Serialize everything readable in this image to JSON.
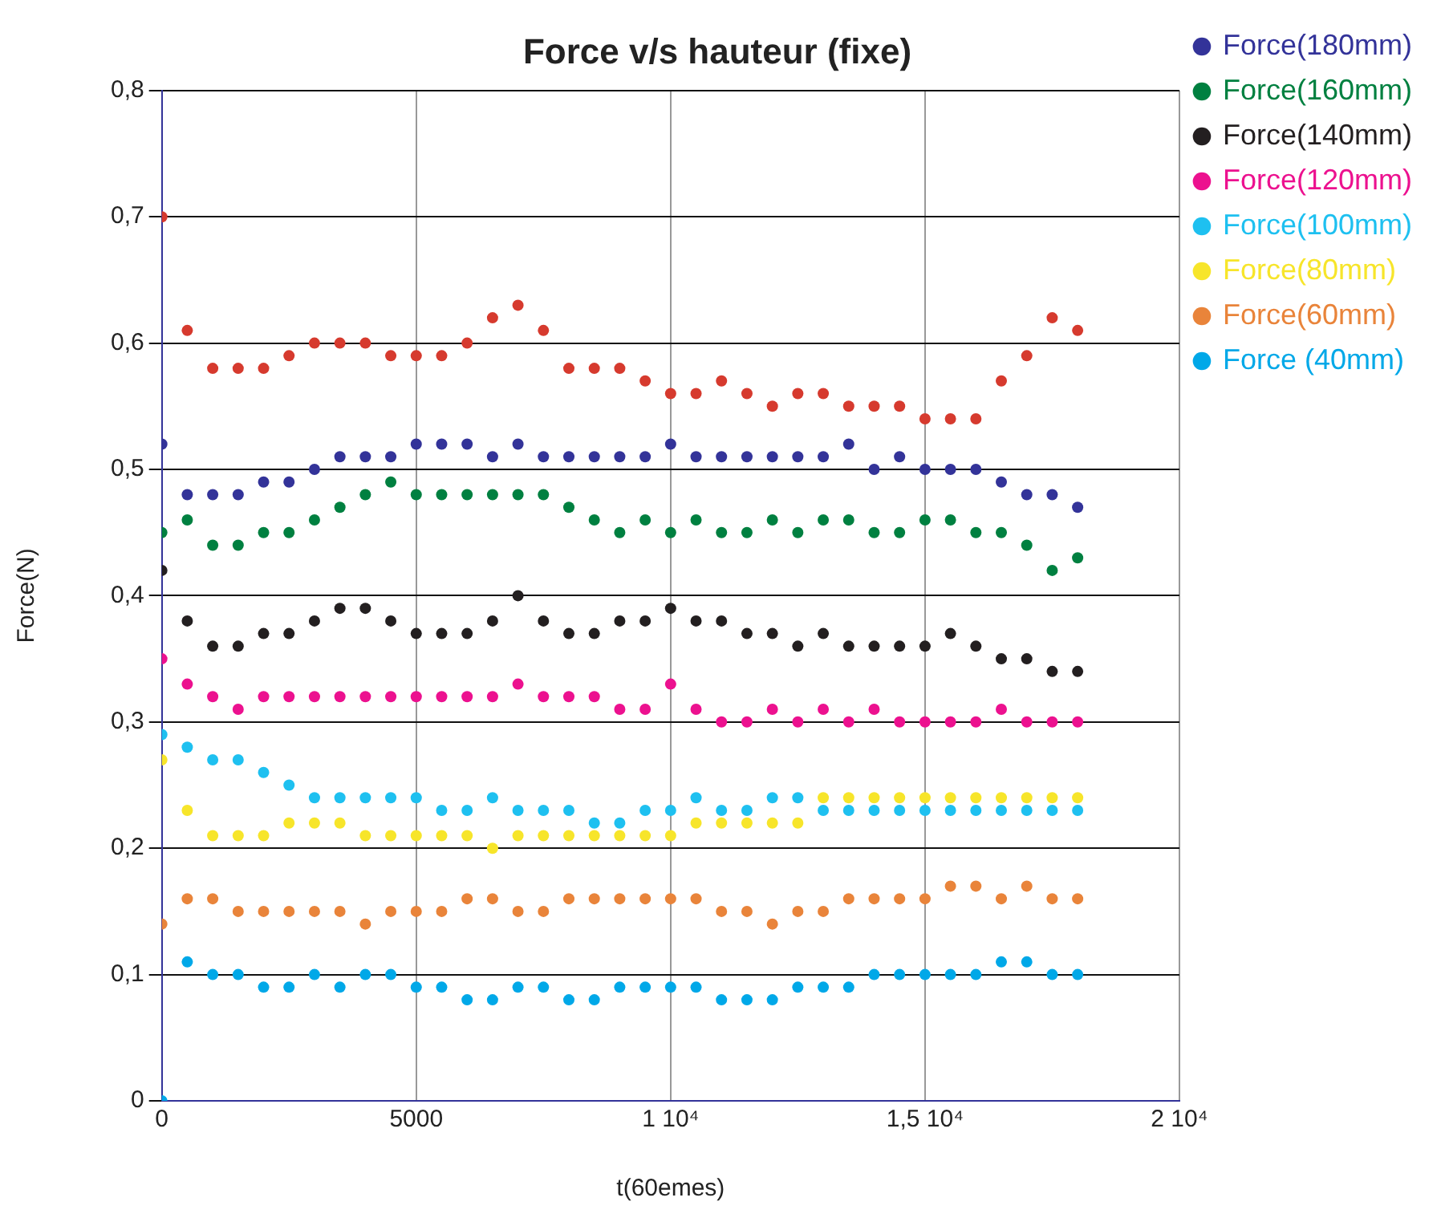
{
  "chart_data": {
    "type": "scatter",
    "title": "Force v/s hauteur (fixe)",
    "xlabel": "t(60emes)",
    "ylabel": "Force(N)",
    "x": [
      0,
      500,
      1000,
      1500,
      2000,
      2500,
      3000,
      3500,
      4000,
      4500,
      5000,
      5500,
      6000,
      6500,
      7000,
      7500,
      8000,
      8500,
      9000,
      9500,
      10000,
      10500,
      11000,
      11500,
      12000,
      12500,
      13000,
      13500,
      14000,
      14500,
      15000,
      15500,
      16000,
      16500,
      17000,
      17500,
      18000
    ],
    "series": [
      {
        "color": "#d63a2e",
        "values": [
          0.7,
          0.61,
          0.58,
          0.58,
          0.58,
          0.59,
          0.6,
          0.6,
          0.6,
          0.59,
          0.59,
          0.59,
          0.6,
          0.62,
          0.63,
          0.61,
          0.58,
          0.58,
          0.58,
          0.57,
          0.56,
          0.56,
          0.57,
          0.56,
          0.55,
          0.56,
          0.56,
          0.55,
          0.55,
          0.55,
          0.54,
          0.54,
          0.54,
          0.57,
          0.59,
          0.62,
          0.61
        ]
      },
      {
        "name": "Force(180mm)",
        "color": "#333399",
        "values": [
          0.52,
          0.48,
          0.48,
          0.48,
          0.49,
          0.49,
          0.5,
          0.51,
          0.51,
          0.51,
          0.52,
          0.52,
          0.52,
          0.51,
          0.52,
          0.51,
          0.51,
          0.51,
          0.51,
          0.51,
          0.52,
          0.51,
          0.51,
          0.51,
          0.51,
          0.51,
          0.51,
          0.52,
          0.5,
          0.51,
          0.5,
          0.5,
          0.5,
          0.49,
          0.48,
          0.48,
          0.47
        ]
      },
      {
        "name": "Force(160mm)",
        "color": "#008040",
        "values": [
          0.45,
          0.46,
          0.44,
          0.44,
          0.45,
          0.45,
          0.46,
          0.47,
          0.48,
          0.49,
          0.48,
          0.48,
          0.48,
          0.48,
          0.48,
          0.48,
          0.47,
          0.46,
          0.45,
          0.46,
          0.45,
          0.46,
          0.45,
          0.45,
          0.46,
          0.45,
          0.46,
          0.46,
          0.45,
          0.45,
          0.46,
          0.46,
          0.45,
          0.45,
          0.44,
          0.42,
          0.43
        ]
      },
      {
        "name": "Force(140mm)",
        "color": "#231f20",
        "values": [
          0.42,
          0.38,
          0.36,
          0.36,
          0.37,
          0.37,
          0.38,
          0.39,
          0.39,
          0.38,
          0.37,
          0.37,
          0.37,
          0.38,
          0.4,
          0.38,
          0.37,
          0.37,
          0.38,
          0.38,
          0.39,
          0.38,
          0.38,
          0.37,
          0.37,
          0.36,
          0.37,
          0.36,
          0.36,
          0.36,
          0.36,
          0.37,
          0.36,
          0.35,
          0.35,
          0.34,
          0.34
        ]
      },
      {
        "name": "Force(120mm)",
        "color": "#ec118f",
        "values": [
          0.35,
          0.33,
          0.32,
          0.31,
          0.32,
          0.32,
          0.32,
          0.32,
          0.32,
          0.32,
          0.32,
          0.32,
          0.32,
          0.32,
          0.33,
          0.32,
          0.32,
          0.32,
          0.31,
          0.31,
          0.33,
          0.31,
          0.3,
          0.3,
          0.31,
          0.3,
          0.31,
          0.3,
          0.31,
          0.3,
          0.3,
          0.3,
          0.3,
          0.31,
          0.3,
          0.3,
          0.3
        ]
      },
      {
        "name": "Force(100mm)",
        "color": "#1ec0f0",
        "values": [
          0.29,
          0.28,
          0.27,
          0.27,
          0.26,
          0.25,
          0.24,
          0.24,
          0.24,
          0.24,
          0.24,
          0.23,
          0.23,
          0.24,
          0.23,
          0.23,
          0.23,
          0.22,
          0.22,
          0.23,
          0.23,
          0.24,
          0.23,
          0.23,
          0.24,
          0.24,
          0.23,
          0.23,
          0.23,
          0.23,
          0.23,
          0.23,
          0.23,
          0.23,
          0.23,
          0.23,
          0.23
        ]
      },
      {
        "name": "Force(80mm)",
        "color": "#f7e52a",
        "values": [
          0.27,
          0.23,
          0.21,
          0.21,
          0.21,
          0.22,
          0.22,
          0.22,
          0.21,
          0.21,
          0.21,
          0.21,
          0.21,
          0.2,
          0.21,
          0.21,
          0.21,
          0.21,
          0.21,
          0.21,
          0.21,
          0.22,
          0.22,
          0.22,
          0.22,
          0.22,
          0.24,
          0.24,
          0.24,
          0.24,
          0.24,
          0.24,
          0.24,
          0.24,
          0.24,
          0.24,
          0.24
        ]
      },
      {
        "name": "Force(60mm)",
        "color": "#e9843a",
        "values": [
          0.14,
          0.16,
          0.16,
          0.15,
          0.15,
          0.15,
          0.15,
          0.15,
          0.14,
          0.15,
          0.15,
          0.15,
          0.16,
          0.16,
          0.15,
          0.15,
          0.16,
          0.16,
          0.16,
          0.16,
          0.16,
          0.16,
          0.15,
          0.15,
          0.14,
          0.15,
          0.15,
          0.16,
          0.16,
          0.16,
          0.16,
          0.17,
          0.17,
          0.16,
          0.17,
          0.16,
          0.16
        ]
      },
      {
        "name": "Force (40mm)",
        "color": "#00a8e8",
        "values": [
          0.0,
          0.11,
          0.1,
          0.1,
          0.09,
          0.09,
          0.1,
          0.09,
          0.1,
          0.1,
          0.09,
          0.09,
          0.08,
          0.08,
          0.09,
          0.09,
          0.08,
          0.08,
          0.09,
          0.09,
          0.09,
          0.09,
          0.08,
          0.08,
          0.08,
          0.09,
          0.09,
          0.09,
          0.1,
          0.1,
          0.1,
          0.1,
          0.1,
          0.11,
          0.11,
          0.1,
          0.1
        ]
      }
    ],
    "xlim": [
      0,
      20000
    ],
    "xticks": [
      0,
      5000,
      {
        "value": 10000,
        "label": "1 10⁴"
      },
      {
        "value": 15000,
        "label": "1,5 10⁴"
      },
      {
        "value": 20000,
        "label": "2 10⁴"
      }
    ],
    "ylim": [
      0,
      0.8
    ],
    "yticks": [
      0,
      {
        "value": 0.1,
        "label": "0,1"
      },
      {
        "value": 0.2,
        "label": "0,2"
      },
      {
        "value": 0.3,
        "label": "0,3"
      },
      {
        "value": 0.4,
        "label": "0,4"
      },
      {
        "value": 0.5,
        "label": "0,5"
      },
      {
        "value": 0.6,
        "label": "0,6"
      },
      {
        "value": 0.7,
        "label": "0,7"
      },
      {
        "value": 0.8,
        "label": "0,8"
      }
    ],
    "grid": true,
    "legend": "top right",
    "marker": "circle"
  }
}
